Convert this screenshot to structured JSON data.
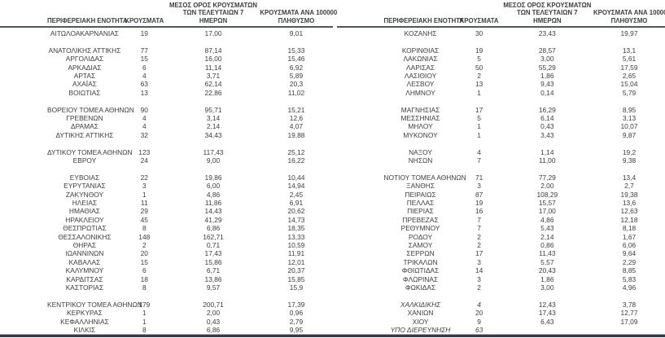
{
  "page": {
    "background": "#ffffff",
    "text_color": "#3d3d3d",
    "header_rule_color": "#54575b",
    "bottom_rule_dark": "#323a46",
    "bottom_rule_light": "#a9abad"
  },
  "column_headers": {
    "region": "ΠΕΡΙΦΕΡΕΙΑΚΗ ΕΝΟΤΗΤΑ",
    "cases": "ΚΡΟΥΣΜΑΤΑ",
    "avg7_lines": [
      "ΜΕΣΟΣ ΟΡΟΣ ΚΡΟΥΣΜΑΤΩΝ",
      "ΤΩΝ ΤΕΛΕΥΤΑΙΩΝ 7",
      "ΗΜΕΡΩΝ"
    ],
    "per100k_lines": [
      "ΚΡΟΥΣΜΑΤΑ ΑΝΑ 100000",
      "ΠΛΗΘΥΣΜΟ"
    ]
  },
  "tables": [
    {
      "id": "left",
      "rows": [
        {
          "region": "ΑΙΤΩΛΟΑΚΑΡΝΑΝΙΑΣ",
          "cases": "19",
          "avg7": "17,00",
          "per100k": "9,01"
        },
        {
          "spacer": true
        },
        {
          "region": "ΑΝΑΤΟΛΙΚΗΣ ΑΤΤΙΚΗΣ",
          "cases": "77",
          "avg7": "87,14",
          "per100k": "15,33"
        },
        {
          "region": "ΑΡΓΟΛΙΔΑΣ",
          "cases": "15",
          "avg7": "16,00",
          "per100k": "15,46"
        },
        {
          "region": "ΑΡΚΑΔΙΑΣ",
          "cases": "6",
          "avg7": "11,14",
          "per100k": "6,92"
        },
        {
          "region": "ΑΡΤΑΣ",
          "cases": "4",
          "avg7": "3,71",
          "per100k": "5,89"
        },
        {
          "region": "ΑΧΑΪΑΣ",
          "cases": "63",
          "avg7": "62,14",
          "per100k": "20,3"
        },
        {
          "region": "ΒΟΙΩΤΙΑΣ",
          "cases": "13",
          "avg7": "22,86",
          "per100k": "11,02"
        },
        {
          "spacer": true
        },
        {
          "region": "ΒΟΡΕΙΟΥ ΤΟΜΕΑ ΑΘΗΝΩΝ",
          "cases": "90",
          "avg7": "95,71",
          "per100k": "15,21"
        },
        {
          "region": "ΓΡΕΒΕΝΩΝ",
          "cases": "4",
          "avg7": "3,14",
          "per100k": "12,6"
        },
        {
          "region": "ΔΡΑΜΑΣ",
          "cases": "4",
          "avg7": "2,14",
          "per100k": "4,07"
        },
        {
          "region": "ΔΥΤΙΚΗΣ ΑΤΤΙΚΗΣ",
          "cases": "32",
          "avg7": "34,43",
          "per100k": "19,88"
        },
        {
          "spacer": true
        },
        {
          "region": "ΔΥΤΙΚΟΥ ΤΟΜΕΑ ΑΘΗΝΩΝ",
          "cases": "123",
          "avg7": "117,43",
          "per100k": "25,12"
        },
        {
          "region": "ΕΒΡΟΥ",
          "cases": "24",
          "avg7": "9,00",
          "per100k": "16,22"
        },
        {
          "spacer": true
        },
        {
          "region": "ΕΥΒΟΙΑΣ",
          "cases": "22",
          "avg7": "19,86",
          "per100k": "10,44"
        },
        {
          "region": "ΕΥΡΥΤΑΝΙΑΣ",
          "cases": "3",
          "avg7": "6,00",
          "per100k": "14,94"
        },
        {
          "region": "ΖΑΚΥΝΘΟΥ",
          "cases": "1",
          "avg7": "4,86",
          "per100k": "2,45"
        },
        {
          "region": "ΗΛΕΙΑΣ",
          "cases": "11",
          "avg7": "11,86",
          "per100k": "6,91"
        },
        {
          "region": "ΗΜΑΘΙΑΣ",
          "cases": "29",
          "avg7": "14,43",
          "per100k": "20,62"
        },
        {
          "region": "ΗΡΑΚΛΕΙΟΥ",
          "cases": "45",
          "avg7": "41,29",
          "per100k": "14,73"
        },
        {
          "region": "ΘΕΣΠΡΩΤΙΑΣ",
          "cases": "8",
          "avg7": "6,86",
          "per100k": "18,35"
        },
        {
          "region": "ΘΕΣΣΑΛΟΝΙΚΗΣ",
          "cases": "148",
          "avg7": "162,71",
          "per100k": "13,33"
        },
        {
          "region": "ΘΗΡΑΣ",
          "cases": "2",
          "avg7": "0,71",
          "per100k": "10,59"
        },
        {
          "region": "ΙΩΑΝΝΙΝΩΝ",
          "cases": "20",
          "avg7": "17,43",
          "per100k": "11,91"
        },
        {
          "region": "ΚΑΒΑΛΑΣ",
          "cases": "15",
          "avg7": "15,86",
          "per100k": "12,01"
        },
        {
          "region": "ΚΑΛΥΜΝΟΥ",
          "cases": "6",
          "avg7": "6,71",
          "per100k": "20,37"
        },
        {
          "region": "ΚΑΡΔΙΤΣΑΣ",
          "cases": "18",
          "avg7": "13,86",
          "per100k": "15,85"
        },
        {
          "region": "ΚΑΣΤΟΡΙΑΣ",
          "cases": "8",
          "avg7": "9,57",
          "per100k": "15,9"
        },
        {
          "spacer": true
        },
        {
          "region": "ΚΕΝΤΡΙΚΟΥ ΤΟΜΕΑ ΑΘΗΝΩΝ",
          "cases": "179",
          "avg7": "200,71",
          "per100k": "17,39"
        },
        {
          "region": "ΚΕΡΚΥΡΑΣ",
          "cases": "1",
          "avg7": "2,00",
          "per100k": "0,96"
        },
        {
          "region": "ΚΕΦΑΛΛΗΝΙΑΣ",
          "cases": "1",
          "avg7": "0,43",
          "per100k": "2,79"
        },
        {
          "region": "ΚΙΛΚΙΣ",
          "cases": "8",
          "avg7": "6,86",
          "per100k": "9,95"
        }
      ]
    },
    {
      "id": "right",
      "rows": [
        {
          "region": "ΚΟΖΑΝΗΣ",
          "cases": "30",
          "avg7": "23,43",
          "per100k": "19,97"
        },
        {
          "spacer": true
        },
        {
          "region": "ΚΟΡΙΝΘΙΑΣ",
          "cases": "19",
          "avg7": "28,57",
          "per100k": "13,1"
        },
        {
          "region": "ΛΑΚΩΝΙΑΣ",
          "cases": "5",
          "avg7": "3,00",
          "per100k": "5,61"
        },
        {
          "region": "ΛΑΡΙΣΑΣ",
          "cases": "50",
          "avg7": "55,29",
          "per100k": "17,59"
        },
        {
          "region": "ΛΑΣΙΘΙΟΥ",
          "cases": "2",
          "avg7": "1,86",
          "per100k": "2,65"
        },
        {
          "region": "ΛΕΣΒΟΥ",
          "cases": "13",
          "avg7": "9,43",
          "per100k": "15,04"
        },
        {
          "region": "ΛΗΜΝΟΥ",
          "cases": "1",
          "avg7": "0,14",
          "per100k": "5,79"
        },
        {
          "spacer": true
        },
        {
          "region": "ΜΑΓΝΗΣΙΑΣ",
          "cases": "17",
          "avg7": "16,29",
          "per100k": "8,95"
        },
        {
          "region": "ΜΕΣΣΗΝΙΑΣ",
          "cases": "5",
          "avg7": "6,14",
          "per100k": "3,13"
        },
        {
          "region": "ΜΗΛΟΥ",
          "cases": "1",
          "avg7": "0,43",
          "per100k": "10,07"
        },
        {
          "region": "ΜΥΚΟΝΟΥ",
          "cases": "1",
          "avg7": "3,43",
          "per100k": "9,87"
        },
        {
          "spacer": true
        },
        {
          "region": "ΝΑΞΟΥ",
          "cases": "4",
          "avg7": "1,14",
          "per100k": "19,2"
        },
        {
          "region": "ΝΗΣΩΝ",
          "cases": "7",
          "avg7": "11,00",
          "per100k": "9,38"
        },
        {
          "spacer": true
        },
        {
          "region": "ΝΟΤΙΟΥ ΤΟΜΕΑ ΑΘΗΝΩΝ",
          "cases": "71",
          "avg7": "77,29",
          "per100k": "13,4"
        },
        {
          "region": "ΞΑΝΘΗΣ",
          "cases": "3",
          "avg7": "2,00",
          "per100k": "2,7"
        },
        {
          "region": "ΠΕΙΡΑΙΩΣ",
          "cases": "87",
          "avg7": "108,29",
          "per100k": "19,38"
        },
        {
          "region": "ΠΕΛΛΑΣ",
          "cases": "19",
          "avg7": "15,57",
          "per100k": "13,6"
        },
        {
          "region": "ΠΙΕΡΙΑΣ",
          "cases": "16",
          "avg7": "17,00",
          "per100k": "12,63"
        },
        {
          "region": "ΠΡΕΒΕΖΑΣ",
          "cases": "7",
          "avg7": "4,86",
          "per100k": "12,18"
        },
        {
          "region": "ΡΕΘΥΜΝΟΥ",
          "cases": "7",
          "avg7": "5,43",
          "per100k": "8,18"
        },
        {
          "region": "ΡΟΔΟΥ",
          "cases": "2",
          "avg7": "2,14",
          "per100k": "1,67"
        },
        {
          "region": "ΣΑΜΟΥ",
          "cases": "2",
          "avg7": "0,86",
          "per100k": "6,06"
        },
        {
          "region": "ΣΕΡΡΩΝ",
          "cases": "17",
          "avg7": "11,43",
          "per100k": "9,64"
        },
        {
          "region": "ΤΡΙΚΑΛΩΝ",
          "cases": "3",
          "avg7": "5,57",
          "per100k": "2,29"
        },
        {
          "region": "ΦΘΙΩΤΙΔΑΣ",
          "cases": "14",
          "avg7": "20,43",
          "per100k": "8,85"
        },
        {
          "region": "ΦΛΩΡΙΝΑΣ",
          "cases": "3",
          "avg7": "1,86",
          "per100k": "5,83"
        },
        {
          "region": "ΦΩΚΙΔΑΣ",
          "cases": "2",
          "avg7": "3,00",
          "per100k": "4,96"
        },
        {
          "spacer": true
        },
        {
          "region": "ΧΑΛΚΙΔΙΚΗΣ",
          "cases": "4",
          "avg7": "12,43",
          "per100k": "3,78",
          "italic": true
        },
        {
          "region": "ΧΑΝΙΩΝ",
          "cases": "20",
          "avg7": "17,43",
          "per100k": "12,77"
        },
        {
          "region": "ΧΙΟΥ",
          "cases": "9",
          "avg7": "6,43",
          "per100k": "17,09"
        },
        {
          "region": "ΥΠΟ ΔΙΕΡΕΥΝΗΣΗ",
          "cases": "63",
          "avg7": "",
          "per100k": "",
          "italic": true
        }
      ]
    }
  ]
}
